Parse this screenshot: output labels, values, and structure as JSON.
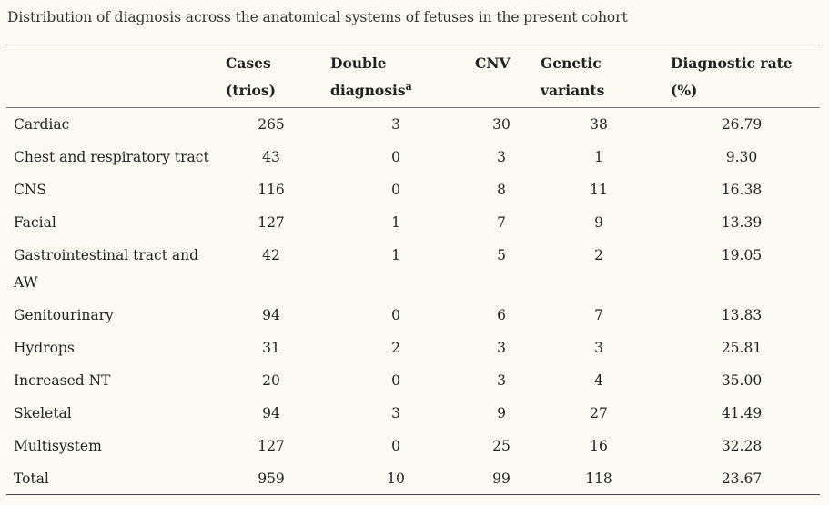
{
  "caption": "Distribution of diagnosis across the anatomical systems of fetuses in the present cohort",
  "headers": {
    "cases_line1": "Cases",
    "cases_line2": "(trios)",
    "double_line1": "Double",
    "double_line2": "diagnosis",
    "double_sup": "a",
    "cnv": "CNV",
    "genetic_line1": "Genetic",
    "genetic_line2": "variants",
    "rate_line1": "Diagnostic rate",
    "rate_line2": "(%)"
  },
  "rows": [
    {
      "system_line1": "Cardiac",
      "system_line2": "",
      "cases": "265",
      "double": "3",
      "cnv": "30",
      "variants": "38",
      "rate": "26.79"
    },
    {
      "system_line1": "Chest and respiratory tract",
      "system_line2": "",
      "cases": "43",
      "double": "0",
      "cnv": "3",
      "variants": "1",
      "rate": "9.30"
    },
    {
      "system_line1": "CNS",
      "system_line2": "",
      "cases": "116",
      "double": "0",
      "cnv": "8",
      "variants": "11",
      "rate": "16.38"
    },
    {
      "system_line1": "Facial",
      "system_line2": "",
      "cases": "127",
      "double": "1",
      "cnv": "7",
      "variants": "9",
      "rate": "13.39"
    },
    {
      "system_line1": "Gastrointestinal tract and",
      "system_line2": "AW",
      "cases": "42",
      "double": "1",
      "cnv": "5",
      "variants": "2",
      "rate": "19.05"
    },
    {
      "system_line1": "Genitourinary",
      "system_line2": "",
      "cases": "94",
      "double": "0",
      "cnv": "6",
      "variants": "7",
      "rate": "13.83"
    },
    {
      "system_line1": "Hydrops",
      "system_line2": "",
      "cases": "31",
      "double": "2",
      "cnv": "3",
      "variants": "3",
      "rate": "25.81"
    },
    {
      "system_line1": "Increased NT",
      "system_line2": "",
      "cases": "20",
      "double": "0",
      "cnv": "3",
      "variants": "4",
      "rate": "35.00"
    },
    {
      "system_line1": "Skeletal",
      "system_line2": "",
      "cases": "94",
      "double": "3",
      "cnv": "9",
      "variants": "27",
      "rate": "41.49"
    },
    {
      "system_line1": "Multisystem",
      "system_line2": "",
      "cases": "127",
      "double": "0",
      "cnv": "25",
      "variants": "16",
      "rate": "32.28"
    },
    {
      "system_line1": "Total",
      "system_line2": "",
      "cases": "959",
      "double": "10",
      "cnv": "99",
      "variants": "118",
      "rate": "23.67"
    }
  ]
}
